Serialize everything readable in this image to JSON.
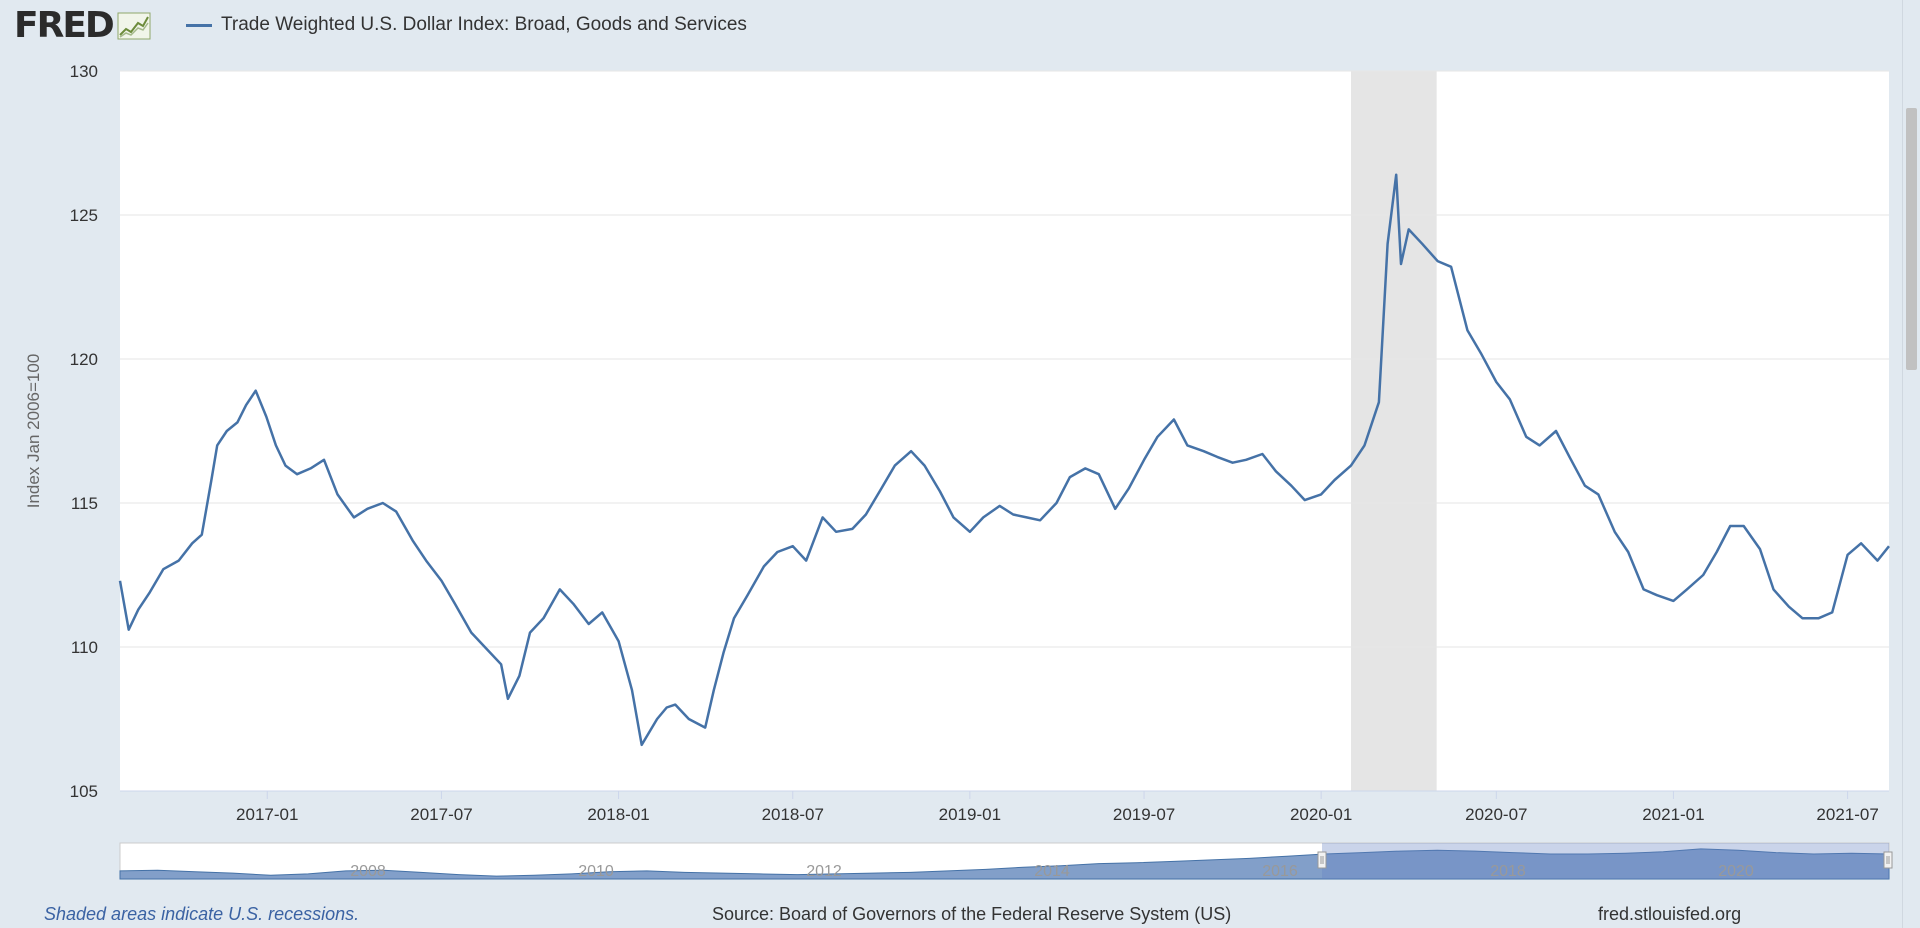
{
  "header": {
    "logo_text": "FRED",
    "logo_icon": "line-graph-icon",
    "legend_label": "Trade Weighted U.S. Dollar Index: Broad, Goods and Services"
  },
  "colors": {
    "series": "#4572a7",
    "recession_shade": "#e5e5e5",
    "background": "#e1e9f0",
    "plot_background": "#ffffff"
  },
  "chart_data": {
    "type": "line",
    "title": "",
    "xlabel": "",
    "ylabel": "Index Jan 2006=100",
    "ylim": [
      105,
      130
    ],
    "yticks": [
      "105",
      "110",
      "115",
      "120",
      "125",
      "130"
    ],
    "xlim": [
      "2016-08-01",
      "2021-08-13"
    ],
    "xticks": [
      "2017-01",
      "2017-07",
      "2018-01",
      "2018-07",
      "2019-01",
      "2019-07",
      "2020-01",
      "2020-07",
      "2021-01",
      "2021-07"
    ],
    "grid": true,
    "legend_position": "top-left",
    "recession_shading": [
      [
        "2020-02-01",
        "2020-04-30"
      ]
    ],
    "series": [
      {
        "name": "Trade Weighted U.S. Dollar Index: Broad, Goods and Services",
        "x": [
          "2016-08-01",
          "2016-08-10",
          "2016-08-20",
          "2016-09-01",
          "2016-09-15",
          "2016-10-01",
          "2016-10-15",
          "2016-10-25",
          "2016-11-04",
          "2016-11-10",
          "2016-11-20",
          "2016-12-01",
          "2016-12-10",
          "2016-12-20",
          "2016-12-31",
          "2017-01-10",
          "2017-01-20",
          "2017-02-01",
          "2017-02-15",
          "2017-03-01",
          "2017-03-15",
          "2017-04-01",
          "2017-04-15",
          "2017-05-01",
          "2017-05-15",
          "2017-06-01",
          "2017-06-15",
          "2017-07-01",
          "2017-07-15",
          "2017-08-01",
          "2017-08-15",
          "2017-09-01",
          "2017-09-08",
          "2017-09-20",
          "2017-10-01",
          "2017-10-15",
          "2017-11-01",
          "2017-11-15",
          "2017-12-01",
          "2017-12-15",
          "2018-01-01",
          "2018-01-15",
          "2018-01-25",
          "2018-02-10",
          "2018-02-20",
          "2018-03-01",
          "2018-03-15",
          "2018-04-01",
          "2018-04-10",
          "2018-04-20",
          "2018-05-01",
          "2018-05-15",
          "2018-06-01",
          "2018-06-15",
          "2018-07-01",
          "2018-07-15",
          "2018-08-01",
          "2018-08-15",
          "2018-09-01",
          "2018-09-15",
          "2018-10-01",
          "2018-10-15",
          "2018-11-01",
          "2018-11-15",
          "2018-12-01",
          "2018-12-15",
          "2019-01-01",
          "2019-01-15",
          "2019-02-01",
          "2019-02-15",
          "2019-03-01",
          "2019-03-15",
          "2019-04-01",
          "2019-04-15",
          "2019-05-01",
          "2019-05-15",
          "2019-06-01",
          "2019-06-15",
          "2019-07-01",
          "2019-07-15",
          "2019-08-01",
          "2019-08-15",
          "2019-09-01",
          "2019-09-15",
          "2019-10-01",
          "2019-10-15",
          "2019-11-01",
          "2019-11-15",
          "2019-12-01",
          "2019-12-15",
          "2020-01-01",
          "2020-01-15",
          "2020-02-01",
          "2020-02-15",
          "2020-03-01",
          "2020-03-10",
          "2020-03-19",
          "2020-03-24",
          "2020-04-01",
          "2020-04-15",
          "2020-05-01",
          "2020-05-15",
          "2020-06-01",
          "2020-06-15",
          "2020-07-01",
          "2020-07-15",
          "2020-08-01",
          "2020-08-15",
          "2020-09-01",
          "2020-09-15",
          "2020-10-01",
          "2020-10-15",
          "2020-11-01",
          "2020-11-15",
          "2020-12-01",
          "2020-12-15",
          "2021-01-01",
          "2021-01-15",
          "2021-02-01",
          "2021-02-15",
          "2021-03-01",
          "2021-03-15",
          "2021-04-01",
          "2021-04-15",
          "2021-05-01",
          "2021-05-15",
          "2021-06-01",
          "2021-06-15",
          "2021-07-01",
          "2021-07-15",
          "2021-08-01",
          "2021-08-13"
        ],
        "values": [
          112.3,
          110.6,
          111.3,
          111.9,
          112.7,
          113.0,
          113.6,
          113.9,
          115.8,
          117.0,
          117.5,
          117.8,
          118.4,
          118.9,
          118.0,
          117.0,
          116.3,
          116.0,
          116.2,
          116.5,
          115.3,
          114.5,
          114.8,
          115.0,
          114.7,
          113.7,
          113.0,
          112.3,
          111.5,
          110.5,
          110.0,
          109.4,
          108.2,
          109.0,
          110.5,
          111.0,
          112.0,
          111.5,
          110.8,
          111.2,
          110.2,
          108.5,
          106.6,
          107.5,
          107.9,
          108.0,
          107.5,
          107.2,
          108.5,
          109.8,
          111.0,
          111.8,
          112.8,
          113.3,
          113.5,
          113.0,
          114.5,
          114.0,
          114.1,
          114.6,
          115.5,
          116.3,
          116.8,
          116.3,
          115.4,
          114.5,
          114.0,
          114.5,
          114.9,
          114.6,
          114.5,
          114.4,
          115.0,
          115.9,
          116.2,
          116.0,
          114.8,
          115.5,
          116.5,
          117.3,
          117.9,
          117.0,
          116.8,
          116.6,
          116.4,
          116.5,
          116.7,
          116.1,
          115.6,
          115.1,
          115.3,
          115.8,
          116.3,
          117.0,
          118.5,
          124.0,
          126.4,
          123.3,
          124.5,
          124.0,
          123.4,
          123.2,
          121.0,
          120.2,
          119.2,
          118.6,
          117.3,
          117.0,
          117.5,
          116.6,
          115.6,
          115.3,
          114.0,
          113.3,
          112.0,
          111.8,
          111.6,
          112.0,
          112.5,
          113.3,
          114.2,
          114.2,
          113.4,
          112.0,
          111.4,
          111.0,
          111.0,
          111.2,
          113.2,
          113.6,
          113.0,
          113.5
        ]
      }
    ],
    "navigator": {
      "labels": [
        "2008",
        "2010",
        "2012",
        "2014",
        "2016",
        "2018",
        "2020"
      ],
      "values": [
        101,
        101.5,
        100.5,
        99.5,
        98,
        99,
        101,
        101.5,
        100,
        98.5,
        97.5,
        98,
        99,
        100.5,
        101,
        100,
        99.5,
        99,
        98.5,
        99,
        99.5,
        100,
        101,
        102,
        103.5,
        104.5,
        106,
        106.5,
        107.5,
        108.5,
        109.5,
        111,
        112.5,
        113.5,
        114.5,
        115,
        114.5,
        113.5,
        112.5,
        112.5,
        113,
        114,
        116,
        115,
        113.5,
        112.5,
        113,
        112.5
      ]
    }
  },
  "footer": {
    "note": "Shaded areas indicate U.S. recessions.",
    "source": "Source: Board of Governors of the Federal Reserve System (US)",
    "url": "fred.stlouisfed.org"
  }
}
